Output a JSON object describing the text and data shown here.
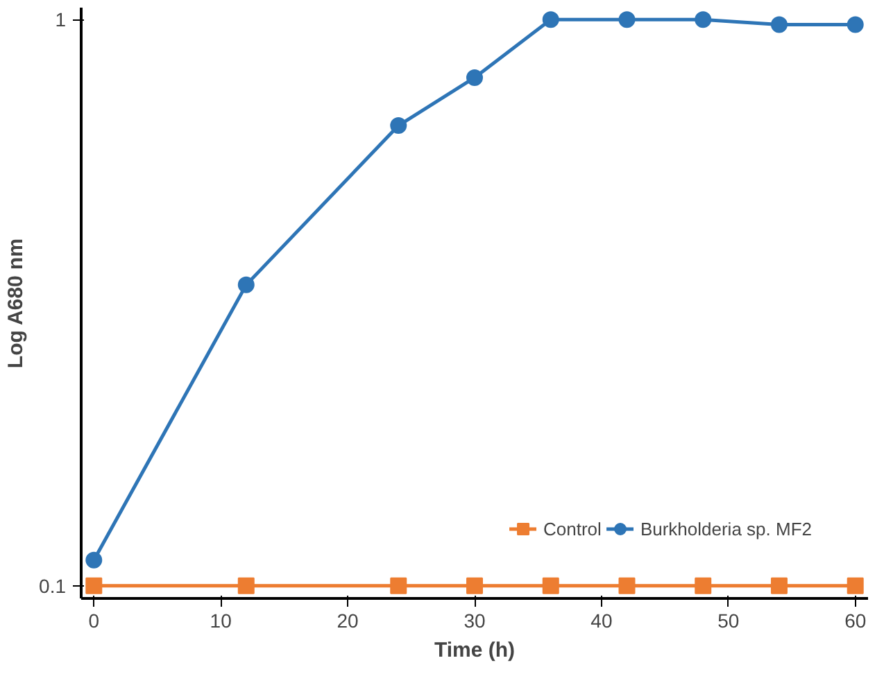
{
  "chart_data": {
    "type": "line",
    "xlabel": "Time (h)",
    "ylabel": "Log A680 nm",
    "log": "y",
    "xlim": [
      -1,
      61
    ],
    "ylim": [
      0.095,
      1.05
    ],
    "xticks": [
      0,
      10,
      20,
      30,
      40,
      50,
      60
    ],
    "yticks": [
      0.1,
      1
    ],
    "grid": false,
    "legend": "bottom right",
    "series": [
      {
        "name": "Control",
        "color": "#ed7d31",
        "marker": "square",
        "x": [
          0,
          12,
          24,
          30,
          36,
          42,
          48,
          54,
          60
        ],
        "values": [
          0.1,
          0.1,
          0.1,
          0.1,
          0.1,
          0.1,
          0.1,
          0.1,
          0.1
        ]
      },
      {
        "name": "Burkholderia sp. MF2",
        "color": "#2e75b6",
        "marker": "circle",
        "x": [
          0,
          12,
          24,
          30,
          36,
          42,
          48,
          54,
          60
        ],
        "values": [
          0.111,
          0.34,
          0.65,
          0.79,
          1.0,
          1.0,
          1.0,
          0.98,
          0.98
        ]
      }
    ]
  }
}
